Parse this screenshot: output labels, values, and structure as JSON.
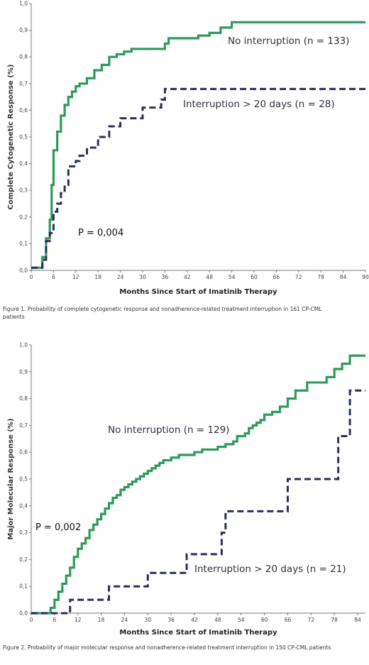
{
  "chart_data": [
    {
      "type": "line",
      "step": true,
      "ylabel": "Complete Cytogenetic Response (%)",
      "xlabel": "Months Since Start of Imatinib Therapy",
      "xlim": [
        0,
        90
      ],
      "ylim": [
        0,
        1.0
      ],
      "x_ticks": [
        0,
        6,
        12,
        18,
        24,
        30,
        36,
        42,
        48,
        54,
        60,
        66,
        72,
        78,
        84,
        90
      ],
      "y_ticks": [
        0,
        0.1,
        0.2,
        0.3,
        0.4,
        0.5,
        0.6,
        0.7,
        0.8,
        0.9,
        1.0
      ],
      "y_tick_labels": [
        "0,0",
        "0,1",
        "0,2",
        "0,3",
        "0,4",
        "0,5",
        "0,6",
        "0,7",
        "0,8",
        "0,9",
        "1,0"
      ],
      "annotation": "P = 0,004",
      "caption": "Figure 1. Probability of complete cytogenetic response and nonadherence-related treatment interruption in 161 CP-CML patients",
      "series": [
        {
          "name": "No interruption (n = 133)",
          "color": "#2e9a5b",
          "style": "solid",
          "x": [
            0,
            3,
            4,
            5,
            5.5,
            6,
            7,
            8,
            9,
            10,
            11,
            12,
            13,
            15,
            17,
            19,
            21,
            23,
            25,
            27,
            29,
            36,
            37,
            45,
            48,
            51,
            54,
            90
          ],
          "y": [
            0.01,
            0.05,
            0.12,
            0.19,
            0.32,
            0.45,
            0.52,
            0.58,
            0.62,
            0.65,
            0.67,
            0.69,
            0.7,
            0.72,
            0.75,
            0.77,
            0.8,
            0.81,
            0.82,
            0.83,
            0.83,
            0.85,
            0.87,
            0.88,
            0.89,
            0.91,
            0.93,
            0.93
          ]
        },
        {
          "name": "Interruption > 20 days (n = 28)",
          "color": "#2b2f5a",
          "style": "dashed",
          "x": [
            0,
            3,
            4,
            5,
            6,
            7,
            8,
            9,
            10,
            12,
            13,
            15,
            18,
            21,
            24,
            28,
            30,
            33,
            35,
            36,
            90
          ],
          "y": [
            0.01,
            0.04,
            0.11,
            0.14,
            0.22,
            0.25,
            0.29,
            0.32,
            0.39,
            0.41,
            0.43,
            0.46,
            0.5,
            0.54,
            0.57,
            0.57,
            0.61,
            0.61,
            0.64,
            0.68,
            0.68
          ]
        }
      ]
    },
    {
      "type": "line",
      "step": true,
      "ylabel": "Major Molecular Response (%)",
      "xlabel": "Months Since Start of Imatinib Therapy",
      "xlim": [
        0,
        86
      ],
      "ylim": [
        0,
        1.0
      ],
      "x_ticks": [
        0,
        6,
        12,
        18,
        24,
        30,
        36,
        42,
        48,
        54,
        60,
        66,
        72,
        78,
        84
      ],
      "y_ticks": [
        0,
        0.1,
        0.2,
        0.3,
        0.4,
        0.5,
        0.6,
        0.7,
        0.8,
        0.9,
        1.0
      ],
      "y_tick_labels": [
        "0,0",
        "0,1",
        "0,2",
        "0,3",
        "0,4",
        "0,5",
        "0,6",
        "0,7",
        "0,8",
        "0,9",
        "1,0"
      ],
      "annotation": "P = 0,002",
      "caption": "Figure 2. Probability of major molecular response and nonadherence-related treatment interruption in 150 CP-CML patients",
      "series": [
        {
          "name": "No interruption (n = 129)",
          "color": "#2e9a5b",
          "style": "solid",
          "x": [
            0,
            5,
            6,
            7,
            8,
            9,
            10,
            11,
            12,
            13,
            14,
            15,
            16,
            17,
            18,
            19,
            20,
            21,
            22,
            23,
            24,
            25,
            26,
            27,
            28,
            29,
            30,
            31,
            32,
            33,
            34,
            35,
            36,
            37,
            38,
            39,
            40,
            42,
            44,
            46,
            48,
            50,
            52,
            53,
            55,
            56,
            57,
            58,
            59,
            60,
            62,
            64,
            66,
            68,
            71,
            76,
            78,
            80,
            82,
            86
          ],
          "y": [
            0.0,
            0.02,
            0.05,
            0.08,
            0.11,
            0.14,
            0.17,
            0.21,
            0.24,
            0.26,
            0.28,
            0.31,
            0.33,
            0.35,
            0.37,
            0.39,
            0.41,
            0.43,
            0.44,
            0.46,
            0.47,
            0.48,
            0.49,
            0.5,
            0.51,
            0.52,
            0.53,
            0.54,
            0.55,
            0.56,
            0.57,
            0.57,
            0.58,
            0.58,
            0.59,
            0.59,
            0.59,
            0.6,
            0.61,
            0.61,
            0.62,
            0.63,
            0.64,
            0.66,
            0.67,
            0.69,
            0.7,
            0.71,
            0.72,
            0.74,
            0.75,
            0.77,
            0.8,
            0.83,
            0.86,
            0.88,
            0.91,
            0.93,
            0.96,
            0.96
          ]
        },
        {
          "name": "Interruption > 20 days (n = 21)",
          "color": "#2b2f5a",
          "style": "dashed",
          "x": [
            0,
            10,
            20,
            30,
            40,
            49,
            50,
            66,
            79,
            82,
            86
          ],
          "y": [
            0.0,
            0.05,
            0.1,
            0.15,
            0.22,
            0.3,
            0.38,
            0.5,
            0.66,
            0.83,
            0.83
          ]
        }
      ]
    }
  ],
  "layout_words": {
    "chart1_label_green_position": "upper-right",
    "chart1_label_dashed_position": "middle-right",
    "chart2_label_green_position": "upper-middle",
    "chart2_label_dashed_position": "lower-right"
  }
}
